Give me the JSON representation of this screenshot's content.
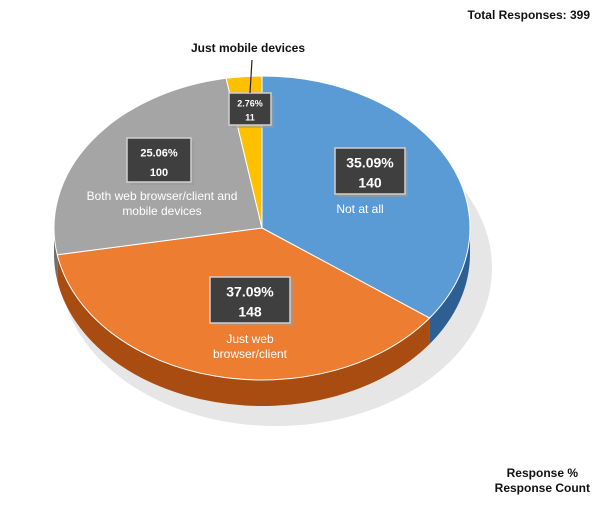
{
  "total_label": "Total Responses: 399",
  "legend_note": [
    "Response %",
    "Response Count"
  ],
  "chart_data": {
    "type": "pie",
    "title": "",
    "total": 399,
    "slices": [
      {
        "label": "Not at all",
        "percent": 35.09,
        "percent_label": "35.09%",
        "count": 140,
        "color": "#5b9bd5",
        "side_color": "#2e5f93"
      },
      {
        "label": "Just web browser/client",
        "percent": 37.09,
        "percent_label": "37.09%",
        "count": 148,
        "color": "#ed7d31",
        "side_color": "#a94c12"
      },
      {
        "label": "Both web browser/client and mobile devices",
        "percent": 25.06,
        "percent_label": "25.06%",
        "count": 100,
        "color": "#a5a5a5",
        "side_color": "#6e6e6e"
      },
      {
        "label": "Just mobile devices",
        "percent": 2.76,
        "percent_label": "2.76%",
        "count": 11,
        "color": "#ffc000",
        "side_color": "#b88a00"
      }
    ]
  }
}
